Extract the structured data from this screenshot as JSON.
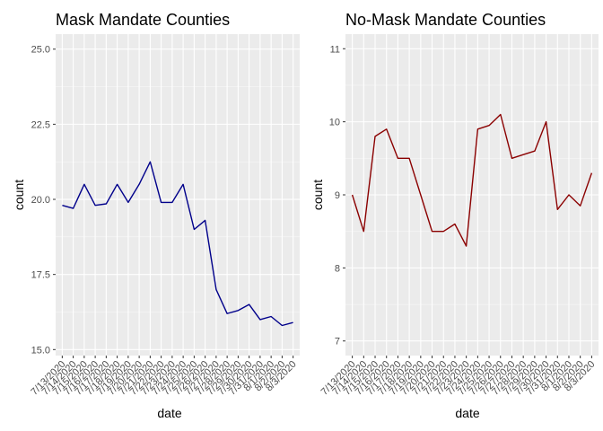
{
  "chart_data": [
    {
      "type": "line",
      "title": "Mask Mandate Counties",
      "xlabel": "date",
      "ylabel": "count",
      "color": "#00008b",
      "categories": [
        "7/13/2020",
        "7/14/2020",
        "7/15/2020",
        "7/16/2020",
        "7/17/2020",
        "7/18/2020",
        "7/19/2020",
        "7/20/2020",
        "7/21/2020",
        "7/22/2020",
        "7/23/2020",
        "7/24/2020",
        "7/25/2020",
        "7/26/2020",
        "7/27/2020",
        "7/28/2020",
        "7/29/2020",
        "7/30/2020",
        "7/31/2020",
        "8/1/2020",
        "8/2/2020",
        "8/3/2020"
      ],
      "values": [
        19.8,
        19.7,
        20.5,
        19.8,
        19.85,
        20.5,
        19.9,
        20.5,
        21.25,
        19.9,
        19.9,
        20.5,
        19.0,
        19.3,
        17.0,
        16.2,
        16.3,
        16.5,
        16.0,
        16.1,
        15.8,
        15.9
      ],
      "ylim": [
        14.8,
        25.5
      ],
      "yticks": [
        15.0,
        17.5,
        20.0,
        22.5,
        25.0
      ],
      "ytick_labels": [
        "15.0",
        "17.5",
        "20.0",
        "22.5",
        "25.0"
      ],
      "grid": true
    },
    {
      "type": "line",
      "title": "No-Mask Mandate Counties",
      "xlabel": "date",
      "ylabel": "count",
      "color": "#8b0000",
      "categories": [
        "7/13/2020",
        "7/14/2020",
        "7/15/2020",
        "7/16/2020",
        "7/17/2020",
        "7/18/2020",
        "7/19/2020",
        "7/20/2020",
        "7/21/2020",
        "7/22/2020",
        "7/23/2020",
        "7/24/2020",
        "7/25/2020",
        "7/26/2020",
        "7/27/2020",
        "7/28/2020",
        "7/29/2020",
        "7/30/2020",
        "7/31/2020",
        "8/1/2020",
        "8/2/2020",
        "8/3/2020"
      ],
      "values": [
        9.0,
        8.5,
        9.8,
        9.9,
        9.5,
        9.5,
        9.0,
        8.5,
        8.5,
        8.6,
        8.3,
        9.9,
        9.95,
        10.1,
        9.5,
        9.55,
        9.6,
        10.0,
        8.8,
        9.0,
        8.85,
        9.3
      ],
      "ylim": [
        6.8,
        11.2
      ],
      "yticks": [
        7,
        8,
        9,
        10,
        11
      ],
      "ytick_labels": [
        "7",
        "8",
        "9",
        "10",
        "11"
      ],
      "grid": true
    }
  ]
}
